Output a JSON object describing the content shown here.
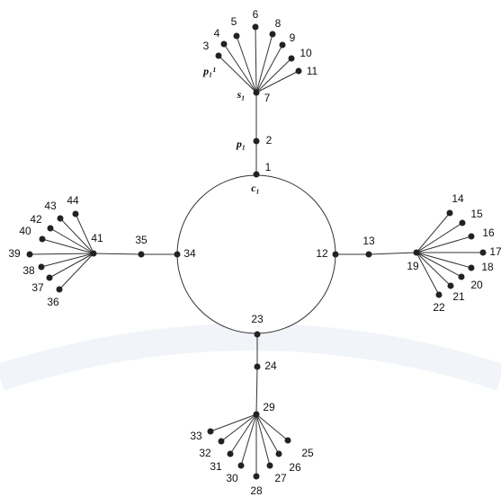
{
  "nodes": [
    "1",
    "2",
    "3",
    "4",
    "5",
    "6",
    "7",
    "8",
    "9",
    "10",
    "11",
    "12",
    "13",
    "14",
    "15",
    "16",
    "17",
    "18",
    "19",
    "20",
    "21",
    "22",
    "23",
    "24",
    "25",
    "26",
    "27",
    "28",
    "29",
    "30",
    "31",
    "32",
    "33",
    "34",
    "35",
    "36",
    "37",
    "38",
    "39",
    "40",
    "41",
    "42",
    "43",
    "44"
  ],
  "annotations": [
    "p₁¹",
    "s₁",
    "p₁",
    "c₁"
  ]
}
